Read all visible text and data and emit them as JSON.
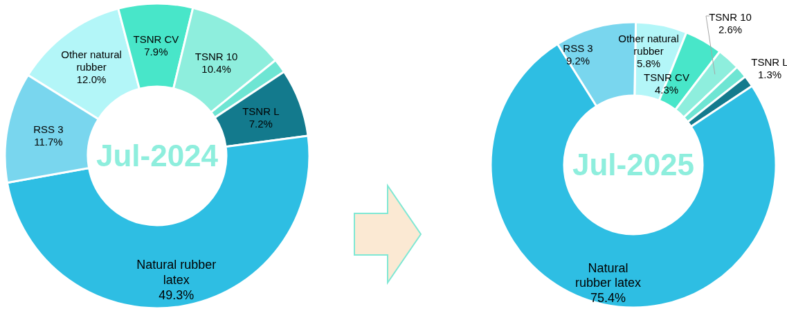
{
  "chart_data": [
    {
      "type": "donut",
      "title": "Jul-2024",
      "categories": [
        "Other natural rubber",
        "TSNR CV",
        "TSNR 10",
        null,
        "TSNR L",
        "Natural rubber latex",
        "RSS 3"
      ],
      "values": [
        12.0,
        7.9,
        10.4,
        1.5,
        7.2,
        49.3,
        11.7
      ],
      "colors": [
        "#b3f6f8",
        "#48e6c9",
        "#8eeedd",
        "#6ee5d3",
        "#137a8d",
        "#2ebee3",
        "#79d6ee"
      ],
      "value_labels": [
        "12.0%",
        "7.9%",
        "10.4%",
        null,
        "7.2%",
        "49.3%",
        "11.7%"
      ]
    },
    {
      "type": "donut",
      "title": "Jul-2025",
      "categories": [
        "Other natural rubber",
        "TSNR CV",
        "TSNR 10",
        null,
        "TSNR L",
        "Natural rubber latex",
        "RSS 3"
      ],
      "values": [
        5.8,
        4.3,
        2.6,
        1.4,
        1.3,
        75.4,
        9.2
      ],
      "colors": [
        "#b3f6f8",
        "#48e6c9",
        "#8eeedd",
        "#6ee5d3",
        "#137a8d",
        "#2ebee3",
        "#79d6ee"
      ],
      "value_labels": [
        "5.8%",
        "4.3%",
        "2.6%",
        null,
        "1.3%",
        "75.4%",
        "9.2%"
      ]
    }
  ]
}
